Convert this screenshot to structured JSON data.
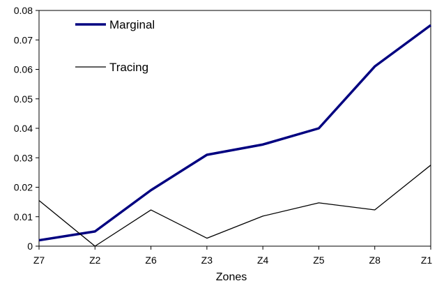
{
  "chart_data": {
    "type": "line",
    "title": "",
    "xlabel": "Zones",
    "ylabel": "",
    "categories": [
      "Z7",
      "Z2",
      "Z6",
      "Z3",
      "Z4",
      "Z5",
      "Z8",
      "Z1"
    ],
    "ylim": [
      0,
      0.08
    ],
    "yticks": [
      "0",
      "0.01",
      "0.02",
      "0.03",
      "0.04",
      "0.05",
      "0.06",
      "0.07",
      "0.08"
    ],
    "ytick_values": [
      0,
      0.01,
      0.02,
      0.03,
      0.04,
      0.05,
      0.06,
      0.07,
      0.08
    ],
    "grid": false,
    "legend_position": "top-left",
    "series": [
      {
        "name": "Marginal",
        "color": "#000080",
        "values": [
          0.002,
          0.005,
          0.019,
          0.031,
          0.0345,
          0.04,
          0.061,
          0.075
        ]
      },
      {
        "name": "Tracing",
        "color": "#000000",
        "values": [
          0.0155,
          0.0,
          0.0123,
          0.0027,
          0.0102,
          0.0147,
          0.0123,
          0.0275
        ]
      }
    ]
  }
}
